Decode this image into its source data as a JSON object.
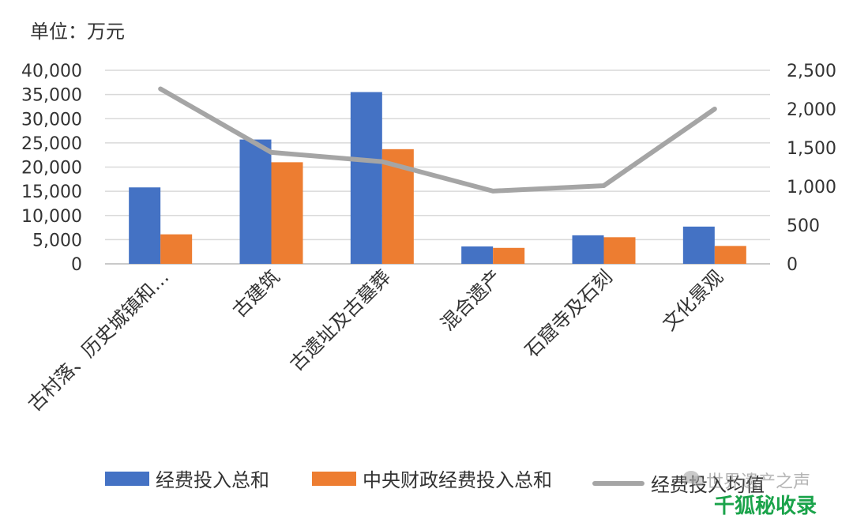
{
  "unit_label": "单位：万元",
  "chart_data": {
    "type": "bar",
    "categories": [
      "古村落、历史城镇和…",
      "古建筑",
      "古遗址及古墓葬",
      "混合遗产",
      "石窟寺及石刻",
      "文化景观"
    ],
    "series": [
      {
        "name": "经费投入总和",
        "type": "bar",
        "axis": "left",
        "color": "#4472C4",
        "values": [
          15800,
          25700,
          35500,
          3600,
          5900,
          7700
        ]
      },
      {
        "name": "中央财政经费投入总和",
        "type": "bar",
        "axis": "left",
        "color": "#ED7D31",
        "values": [
          6100,
          21000,
          23700,
          3300,
          5500,
          3700
        ]
      },
      {
        "name": "经费投入均值",
        "type": "line",
        "axis": "right",
        "color": "#A5A5A5",
        "values": [
          2260,
          1440,
          1320,
          940,
          1010,
          2000
        ]
      }
    ],
    "ylim_left": [
      0,
      40000
    ],
    "ylim_right": [
      0,
      2500
    ],
    "yticks_left": [
      "0",
      "5,000",
      "10,000",
      "15,000",
      "20,000",
      "25,000",
      "30,000",
      "35,000",
      "40,000"
    ],
    "yticks_right": [
      "0",
      "500",
      "1,000",
      "1,500",
      "2,000",
      "2,500"
    ],
    "grid": true,
    "legend_position": "bottom"
  },
  "legend": {
    "item1": "经费投入总和",
    "item2": "中央财政经费投入总和",
    "item3": "经费投入均值"
  },
  "watermark": {
    "top_text": "世界遗产之声",
    "bottom_text": "千狐秘收录"
  }
}
